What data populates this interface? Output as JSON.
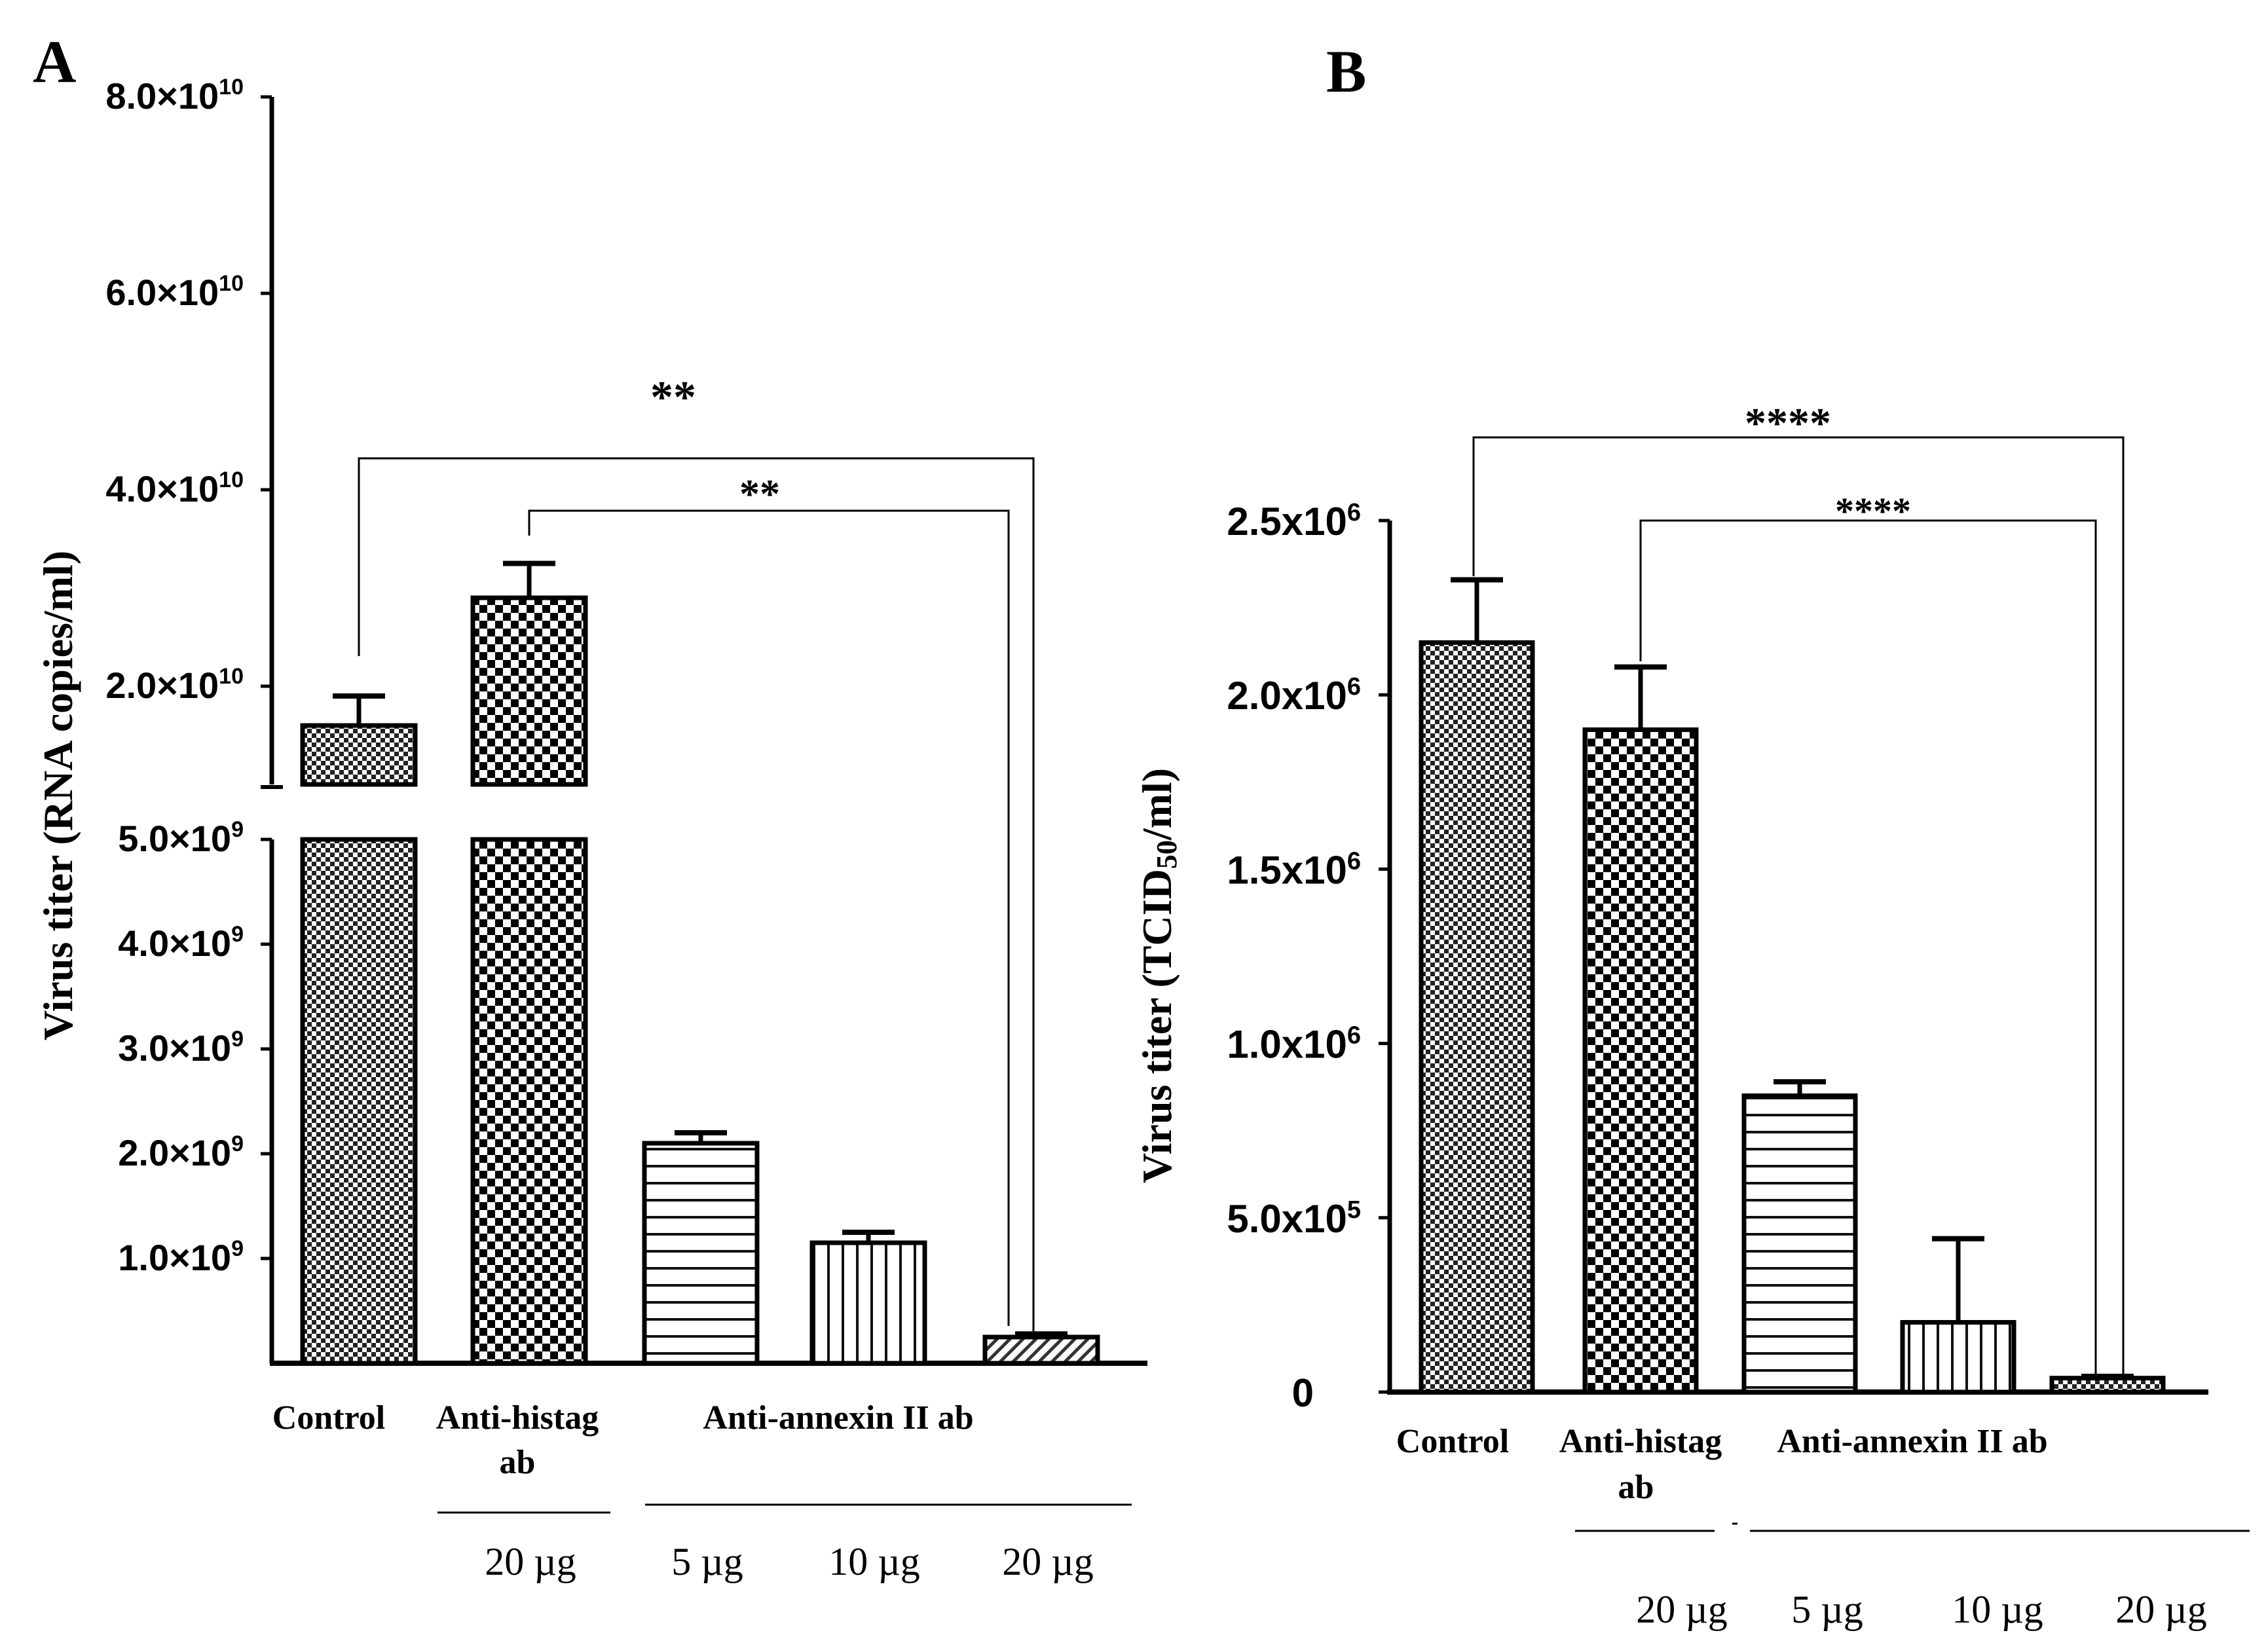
{
  "chart_data": [
    {
      "panel": "A",
      "type": "bar",
      "title": "",
      "ylabel": "Virus titer (RNA copies/ml)",
      "xlabel": "",
      "axis_break": {
        "lower": [
          0,
          5000000000
        ],
        "upper": [
          10000000000,
          80000000000
        ]
      },
      "lower_ticks": [
        {
          "value": 1000000000,
          "label": "1.0×10",
          "exp": "9"
        },
        {
          "value": 2000000000,
          "label": "2.0×10",
          "exp": "9"
        },
        {
          "value": 3000000000,
          "label": "3.0×10",
          "exp": "9"
        },
        {
          "value": 4000000000,
          "label": "4.0×10",
          "exp": "9"
        },
        {
          "value": 5000000000,
          "label": "5.0×10",
          "exp": "9"
        }
      ],
      "upper_ticks": [
        {
          "value": 20000000000,
          "label": "2.0×10",
          "exp": "10"
        },
        {
          "value": 40000000000,
          "label": "4.0×10",
          "exp": "10"
        },
        {
          "value": 60000000000,
          "label": "6.0×10",
          "exp": "10"
        },
        {
          "value": 80000000000,
          "label": "8.0×10",
          "exp": "10"
        }
      ],
      "groups": {
        "control": "Control",
        "histag_l1": "Anti-histag",
        "histag_l2": "ab",
        "annexin": "Anti-annexin II ab"
      },
      "doses": [
        "20 µg",
        "5 µg",
        "10 µg",
        "20 µg"
      ],
      "bars": [
        {
          "name": "Control",
          "value": 16000000000,
          "error": 3000000000,
          "pattern": "fine-check"
        },
        {
          "name": "Anti-histag ab 20 µg",
          "value": 29000000000,
          "error": 3500000000,
          "pattern": "coarse-check"
        },
        {
          "name": "Anti-annexin II ab 5 µg",
          "value": 2100000000,
          "error": 100000000,
          "pattern": "horizontal"
        },
        {
          "name": "Anti-annexin II ab 10 µg",
          "value": 1150000000,
          "error": 100000000,
          "pattern": "vertical"
        },
        {
          "name": "Anti-annexin II ab 20 µg",
          "value": 250000000,
          "error": 30000000,
          "pattern": "diagonal"
        }
      ],
      "significance": [
        {
          "from": 0,
          "to": 4,
          "label": "**"
        },
        {
          "from": 1,
          "to": 4,
          "label": "**"
        }
      ]
    },
    {
      "panel": "B",
      "type": "bar",
      "title": "",
      "ylabel_main": "Virus titer (TCID",
      "ylabel_sub": "50",
      "ylabel_end": "/ml)",
      "xlabel": "",
      "ylim": [
        0,
        2500000
      ],
      "ticks": [
        {
          "value": 0,
          "label": "0",
          "exp": ""
        },
        {
          "value": 500000,
          "label": "5.0x10",
          "exp": "5"
        },
        {
          "value": 1000000,
          "label": "1.0x10",
          "exp": "6"
        },
        {
          "value": 1500000,
          "label": "1.5x10",
          "exp": "6"
        },
        {
          "value": 2000000,
          "label": "2.0x10",
          "exp": "6"
        },
        {
          "value": 2500000,
          "label": "2.5x10",
          "exp": "6"
        }
      ],
      "groups": {
        "control": "Control",
        "histag_l1": "Anti-histag",
        "histag_l2": "ab",
        "annexin": "Anti-annexin II ab"
      },
      "doses": [
        "20 µg",
        "5 µg",
        "10 µg",
        "20 µg"
      ],
      "bars": [
        {
          "name": "Control",
          "value": 2150000,
          "error": 180000,
          "pattern": "fine-check"
        },
        {
          "name": "Anti-histag ab 20 µg",
          "value": 1900000,
          "error": 180000,
          "pattern": "coarse-check"
        },
        {
          "name": "Anti-annexin II ab 5 µg",
          "value": 850000,
          "error": 40000,
          "pattern": "horizontal"
        },
        {
          "name": "Anti-annexin II ab 10 µg",
          "value": 200000,
          "error": 240000,
          "pattern": "vertical"
        },
        {
          "name": "Anti-annexin II ab 20 µg",
          "value": 40000,
          "error": 5000,
          "pattern": "fine-check"
        }
      ],
      "significance": [
        {
          "from": 0,
          "to": 4,
          "label": "****"
        },
        {
          "from": 1,
          "to": 4,
          "label": "****"
        }
      ]
    }
  ]
}
